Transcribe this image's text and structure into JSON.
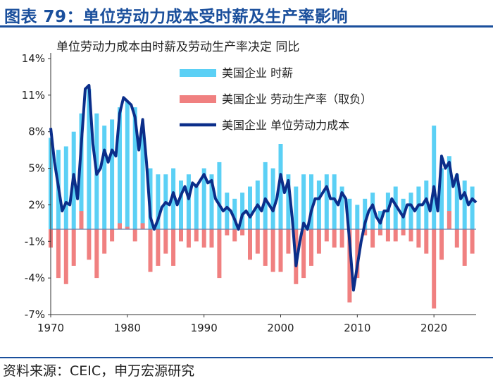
{
  "header": {
    "title": "图表 79：单位劳动力成本受时薪及生产率影响",
    "source": "资料来源：CEIC，申万宏源研究"
  },
  "colors": {
    "brand": "#1a4f9c",
    "wage_bars": "#5bd0f5",
    "productivity_bars": "#f08080",
    "ulc_line": "#0b2e8a"
  },
  "chart_data": {
    "type": "bar+line",
    "title": "单位劳动力成本由时薪及劳动生产率决定 同比",
    "ylim": [
      -7,
      14
    ],
    "yticks": [
      14,
      11,
      8,
      5,
      2,
      -1,
      -4,
      -7
    ],
    "ytick_labels": [
      "14%",
      "11%",
      "8%",
      "5%",
      "2%",
      "-1%",
      "-4%",
      "-7%"
    ],
    "xlim": [
      1970,
      2025.5
    ],
    "xticks": [
      1970,
      1980,
      1990,
      2000,
      2010,
      2020
    ],
    "legend_placement": "top-center",
    "series": [
      {
        "name": "美国企业 时薪",
        "kind": "bar",
        "points": [
          [
            1970,
            7.5
          ],
          [
            1971,
            6.5
          ],
          [
            1972,
            6.8
          ],
          [
            1973,
            8.0
          ],
          [
            1974,
            9.5
          ],
          [
            1975,
            11.5
          ],
          [
            1976,
            9.5
          ],
          [
            1977,
            8.5
          ],
          [
            1978,
            9.0
          ],
          [
            1979,
            10.0
          ],
          [
            1980,
            10.5
          ],
          [
            1981,
            10.0
          ],
          [
            1982,
            8.0
          ],
          [
            1983,
            5.0
          ],
          [
            1984,
            4.5
          ],
          [
            1985,
            4.5
          ],
          [
            1986,
            5.0
          ],
          [
            1987,
            4.0
          ],
          [
            1988,
            4.5
          ],
          [
            1989,
            3.5
          ],
          [
            1990,
            5.0
          ],
          [
            1991,
            4.5
          ],
          [
            1992,
            5.5
          ],
          [
            1993,
            3.0
          ],
          [
            1994,
            2.5
          ],
          [
            1995,
            3.0
          ],
          [
            1996,
            3.5
          ],
          [
            1997,
            4.0
          ],
          [
            1998,
            5.5
          ],
          [
            1999,
            5.0
          ],
          [
            2000,
            7.0
          ],
          [
            2001,
            4.5
          ],
          [
            2002,
            3.5
          ],
          [
            2003,
            4.5
          ],
          [
            2004,
            4.5
          ],
          [
            2005,
            4.0
          ],
          [
            2006,
            4.5
          ],
          [
            2007,
            4.5
          ],
          [
            2008,
            3.5
          ],
          [
            2009,
            2.5
          ],
          [
            2010,
            2.0
          ],
          [
            2011,
            2.5
          ],
          [
            2012,
            3.0
          ],
          [
            2013,
            1.5
          ],
          [
            2014,
            3.0
          ],
          [
            2015,
            3.5
          ],
          [
            2016,
            2.5
          ],
          [
            2017,
            3.0
          ],
          [
            2018,
            3.5
          ],
          [
            2019,
            4.0
          ],
          [
            2020,
            8.5
          ],
          [
            2021,
            5.0
          ],
          [
            2022,
            6.0
          ],
          [
            2023,
            4.5
          ],
          [
            2024,
            4.0
          ],
          [
            2025,
            3.5
          ]
        ]
      },
      {
        "name": "美国企业 劳动生产率（取负）",
        "kind": "bar",
        "points": [
          [
            1970,
            -1.5
          ],
          [
            1971,
            -4.0
          ],
          [
            1972,
            -4.5
          ],
          [
            1973,
            -3.0
          ],
          [
            1974,
            1.5
          ],
          [
            1975,
            -2.5
          ],
          [
            1976,
            -4.0
          ],
          [
            1977,
            -2.0
          ],
          [
            1978,
            -1.0
          ],
          [
            1979,
            0.5
          ],
          [
            1980,
            0.2
          ],
          [
            1981,
            -1.0
          ],
          [
            1982,
            0.5
          ],
          [
            1983,
            -3.5
          ],
          [
            1984,
            -3.0
          ],
          [
            1985,
            -2.0
          ],
          [
            1986,
            -3.0
          ],
          [
            1987,
            -1.0
          ],
          [
            1988,
            -1.5
          ],
          [
            1989,
            -1.0
          ],
          [
            1990,
            -1.5
          ],
          [
            1991,
            -1.5
          ],
          [
            1992,
            -4.0
          ],
          [
            1993,
            -0.5
          ],
          [
            1994,
            -1.0
          ],
          [
            1995,
            -0.5
          ],
          [
            1996,
            -2.5
          ],
          [
            1997,
            -2.0
          ],
          [
            1998,
            -3.0
          ],
          [
            1999,
            -3.5
          ],
          [
            2000,
            -3.5
          ],
          [
            2001,
            -2.0
          ],
          [
            2002,
            -4.5
          ],
          [
            2003,
            -4.0
          ],
          [
            2004,
            -3.0
          ],
          [
            2005,
            -2.0
          ],
          [
            2006,
            -1.0
          ],
          [
            2007,
            -1.5
          ],
          [
            2008,
            -1.5
          ],
          [
            2009,
            -6.0
          ],
          [
            2010,
            -4.0
          ],
          [
            2011,
            -0.5
          ],
          [
            2012,
            -1.5
          ],
          [
            2013,
            -0.5
          ],
          [
            2014,
            -1.0
          ],
          [
            2015,
            -1.0
          ],
          [
            2016,
            -0.5
          ],
          [
            2017,
            -1.0
          ],
          [
            2018,
            -1.5
          ],
          [
            2019,
            -2.0
          ],
          [
            2020,
            -6.5
          ],
          [
            2021,
            -2.5
          ],
          [
            2022,
            1.5
          ],
          [
            2023,
            -1.5
          ],
          [
            2024,
            -3.0
          ],
          [
            2025,
            -2.0
          ]
        ]
      },
      {
        "name": "美国企业 单位劳动力成本",
        "kind": "line",
        "points": [
          [
            1970,
            8.3
          ],
          [
            1970.5,
            5.5
          ],
          [
            1971,
            3.5
          ],
          [
            1971.5,
            1.5
          ],
          [
            1972,
            2.2
          ],
          [
            1972.5,
            2.0
          ],
          [
            1973,
            4.5
          ],
          [
            1973.5,
            2.5
          ],
          [
            1974,
            7.0
          ],
          [
            1974.5,
            11.5
          ],
          [
            1975,
            11.8
          ],
          [
            1975.5,
            7.0
          ],
          [
            1976,
            4.5
          ],
          [
            1976.5,
            5.0
          ],
          [
            1977,
            6.5
          ],
          [
            1977.5,
            5.5
          ],
          [
            1978,
            6.5
          ],
          [
            1978.5,
            6.0
          ],
          [
            1979,
            9.5
          ],
          [
            1979.5,
            10.8
          ],
          [
            1980,
            10.5
          ],
          [
            1980.5,
            10.2
          ],
          [
            1981,
            9.2
          ],
          [
            1981.5,
            6.5
          ],
          [
            1982,
            9.0
          ],
          [
            1982.5,
            5.5
          ],
          [
            1983,
            1.0
          ],
          [
            1983.5,
            0.0
          ],
          [
            1984,
            0.8
          ],
          [
            1984.5,
            1.8
          ],
          [
            1985,
            2.2
          ],
          [
            1985.5,
            2.0
          ],
          [
            1986,
            3.0
          ],
          [
            1986.5,
            2.0
          ],
          [
            1987,
            2.8
          ],
          [
            1987.5,
            3.5
          ],
          [
            1988,
            2.5
          ],
          [
            1988.5,
            3.8
          ],
          [
            1989,
            3.5
          ],
          [
            1989.5,
            4.0
          ],
          [
            1990,
            4.5
          ],
          [
            1990.5,
            3.8
          ],
          [
            1991,
            4.0
          ],
          [
            1991.5,
            2.5
          ],
          [
            1992,
            2.0
          ],
          [
            1992.5,
            1.5
          ],
          [
            1993,
            1.8
          ],
          [
            1993.5,
            1.5
          ],
          [
            1994,
            0.8
          ],
          [
            1994.5,
            0.0
          ],
          [
            1995,
            1.2
          ],
          [
            1995.5,
            1.5
          ],
          [
            1996,
            1.0
          ],
          [
            1996.5,
            1.5
          ],
          [
            1997,
            2.0
          ],
          [
            1997.5,
            1.5
          ],
          [
            1998,
            2.5
          ],
          [
            1998.5,
            2.0
          ],
          [
            1999,
            1.5
          ],
          [
            1999.5,
            2.5
          ],
          [
            2000,
            4.5
          ],
          [
            2000.5,
            3.0
          ],
          [
            2001,
            4.0
          ],
          [
            2001.5,
            1.0
          ],
          [
            2002,
            -3.0
          ],
          [
            2002.5,
            -1.0
          ],
          [
            2003,
            0.5
          ],
          [
            2003.5,
            0.0
          ],
          [
            2004,
            1.5
          ],
          [
            2004.5,
            2.5
          ],
          [
            2005,
            2.5
          ],
          [
            2005.5,
            3.0
          ],
          [
            2006,
            3.5
          ],
          [
            2006.5,
            2.5
          ],
          [
            2007,
            2.5
          ],
          [
            2007.5,
            2.0
          ],
          [
            2008,
            3.0
          ],
          [
            2008.5,
            2.5
          ],
          [
            2009,
            -1.0
          ],
          [
            2009.5,
            -5.0
          ],
          [
            2010,
            -3.0
          ],
          [
            2010.5,
            -1.0
          ],
          [
            2011,
            0.5
          ],
          [
            2011.5,
            1.5
          ],
          [
            2012,
            2.0
          ],
          [
            2012.5,
            1.0
          ],
          [
            2013,
            0.5
          ],
          [
            2013.5,
            1.5
          ],
          [
            2014,
            1.5
          ],
          [
            2014.5,
            2.5
          ],
          [
            2015,
            2.0
          ],
          [
            2015.5,
            1.5
          ],
          [
            2016,
            1.0
          ],
          [
            2016.5,
            2.0
          ],
          [
            2017,
            2.0
          ],
          [
            2017.5,
            1.5
          ],
          [
            2018,
            2.0
          ],
          [
            2018.5,
            2.0
          ],
          [
            2019,
            2.5
          ],
          [
            2019.5,
            1.5
          ],
          [
            2020,
            3.5
          ],
          [
            2020.5,
            1.5
          ],
          [
            2021,
            6.0
          ],
          [
            2021.5,
            5.0
          ],
          [
            2022,
            5.5
          ],
          [
            2022.5,
            3.5
          ],
          [
            2023,
            4.5
          ],
          [
            2023.5,
            2.5
          ],
          [
            2024,
            3.0
          ],
          [
            2024.5,
            2.0
          ],
          [
            2025,
            2.5
          ],
          [
            2025.5,
            2.2
          ]
        ]
      }
    ]
  }
}
